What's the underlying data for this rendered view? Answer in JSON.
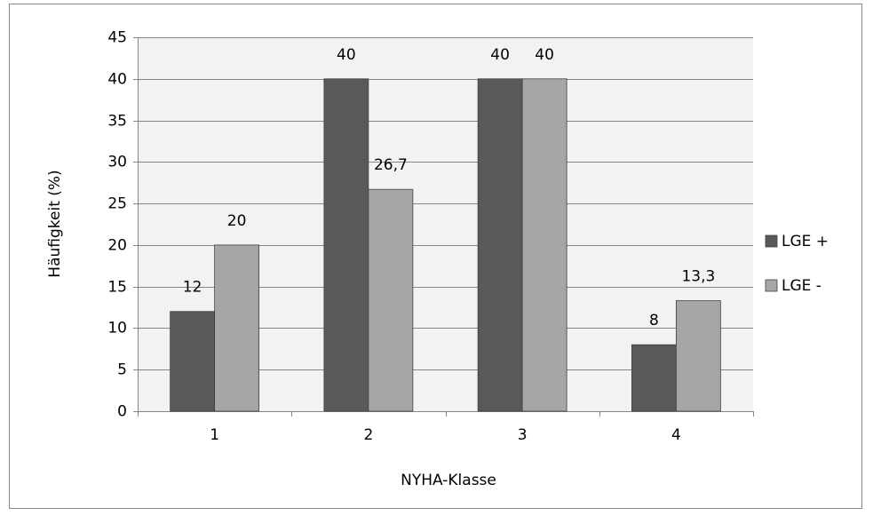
{
  "chart_data": {
    "type": "bar",
    "categories": [
      "1",
      "2",
      "3",
      "4"
    ],
    "x_label": "NYHA-Klasse",
    "y_label": "Häufigkeit (%)",
    "series": [
      {
        "name": "LGE +",
        "color": "#595959",
        "values": [
          12,
          40,
          40,
          8
        ]
      },
      {
        "name": "LGE -",
        "color": "#a6a6a6",
        "values": [
          20,
          26.7,
          40,
          13.3
        ],
        "value_labels": [
          "20",
          "26,7",
          "40",
          "13,3"
        ]
      }
    ],
    "ylim": [
      0,
      45
    ],
    "yticks": [
      0,
      5,
      10,
      15,
      20,
      25,
      30,
      35,
      40,
      45
    ],
    "grid": true,
    "legend": "right"
  }
}
